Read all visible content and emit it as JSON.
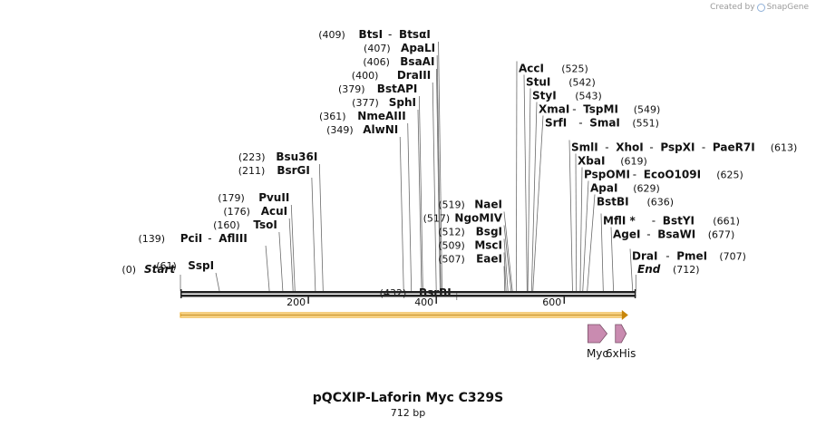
{
  "credit": {
    "prefix": "Created by",
    "brand": "SnapGene"
  },
  "title": "pQCXIP-Laforin Myc C329S",
  "subtitle": "712 bp",
  "ends": {
    "start": {
      "pos": "(0)",
      "label": "Start",
      "bp": 0
    },
    "end": {
      "label": "End",
      "pos": "(712)",
      "bp": 712
    }
  },
  "ruler": {
    "ticks": [
      {
        "label": "200",
        "bp": 200
      },
      {
        "label": "400",
        "bp": 400
      },
      {
        "label": "600",
        "bp": 600
      }
    ]
  },
  "orf": {
    "start_bp": 0,
    "end_bp": 700,
    "color": "#f0b43c"
  },
  "features": [
    {
      "label": "Myc",
      "start_bp": 637,
      "end_bp": 667,
      "color": "#c98bb0"
    },
    {
      "label": "6xHis",
      "start_bp": 680,
      "end_bp": 697,
      "color": "#c98bb0"
    }
  ],
  "left_sites": [
    {
      "row": 0,
      "pos": "(409)",
      "name": "BtsI",
      "partner": "BtsαI",
      "cut": 409
    },
    {
      "row": 1,
      "pos": "(407)",
      "name": "ApaLI",
      "cut": 407
    },
    {
      "row": 2,
      "pos": "(406)",
      "name": "BsaAI",
      "cut": 406
    },
    {
      "row": 3,
      "pos": "(400)",
      "name": "DraIII",
      "cut": 400
    },
    {
      "row": 4,
      "pos": "(379)",
      "name": "BstAPI",
      "cut": 379
    },
    {
      "row": 5,
      "pos": "(377)",
      "name": "SphI",
      "cut": 377
    },
    {
      "row": 6,
      "pos": "(361)",
      "name": "NmeAIII",
      "cut": 361
    },
    {
      "row": 7,
      "pos": "(349)",
      "name": "AlwNI",
      "cut": 349
    },
    {
      "row": 9,
      "pos": "(223)",
      "name": "Bsu36I",
      "cut": 223
    },
    {
      "row": 10,
      "pos": "(211)",
      "name": "BsrGI",
      "cut": 211
    },
    {
      "row": 12,
      "pos": "(179)",
      "name": "PvuII",
      "cut": 179
    },
    {
      "row": 13,
      "pos": "(176)",
      "name": "AcuI",
      "cut": 176
    },
    {
      "row": 14,
      "pos": "(160)",
      "name": "TsoI",
      "cut": 160
    },
    {
      "row": 15,
      "pos": "(139)",
      "name": "PciI",
      "partner": "AflIII",
      "cut": 139
    },
    {
      "row": 17,
      "pos": "(61)",
      "name": "SspI",
      "cut": 61
    },
    {
      "row": 19,
      "pos": "(432)",
      "name": "BsrBI",
      "cut": 432
    }
  ],
  "mid_sites": [
    {
      "row": 12.5,
      "pos": "(519)",
      "name": "NaeI",
      "cut": 519
    },
    {
      "row": 13.5,
      "pos": "(517)",
      "name": "NgoMIV",
      "cut": 517
    },
    {
      "row": 14.5,
      "pos": "(512)",
      "name": "BsgI",
      "cut": 512
    },
    {
      "row": 15.5,
      "pos": "(509)",
      "name": "MscI",
      "cut": 509
    },
    {
      "row": 16.5,
      "pos": "(507)",
      "name": "EaeI",
      "cut": 507
    }
  ],
  "right_sites": [
    {
      "row": 2.5,
      "name": "AccI",
      "pos": "(525)",
      "cut": 525
    },
    {
      "row": 3.5,
      "name": "StuI",
      "pos": "(542)",
      "cut": 542
    },
    {
      "row": 4.5,
      "name": "StyI",
      "pos": "(543)",
      "cut": 543
    },
    {
      "row": 5.5,
      "name": "XmaI",
      "partner": "TspMI",
      "pos": "(549)",
      "cut": 549
    },
    {
      "row": 6.5,
      "name": "SrfI",
      "partner": "SmaI",
      "pos": "(551)",
      "cut": 551
    },
    {
      "row": 8.3,
      "name": "SmlI",
      "partner": "XhoI",
      "partner2": "PspXI",
      "partner3": "PaeR7I",
      "pos": "(613)",
      "cut": 613
    },
    {
      "row": 9.3,
      "name": "XbaI",
      "pos": "(619)",
      "cut": 619
    },
    {
      "row": 10.3,
      "name": "PspOMI",
      "partner": "EcoO109I",
      "pos": "(625)",
      "cut": 625
    },
    {
      "row": 11.3,
      "name": "ApaI",
      "pos": "(629)",
      "cut": 629
    },
    {
      "row": 12.3,
      "name": "BstBI",
      "pos": "(636)",
      "cut": 636
    },
    {
      "row": 13.7,
      "name": "MflI *",
      "partner": "BstYI",
      "pos": "(661)",
      "cut": 661
    },
    {
      "row": 14.7,
      "name": "AgeI",
      "partner": "BsaWI",
      "pos": "(677)",
      "cut": 677
    },
    {
      "row": 16.3,
      "name": "DraI",
      "partner": "PmeI",
      "pos": "(707)",
      "cut": 707
    }
  ]
}
